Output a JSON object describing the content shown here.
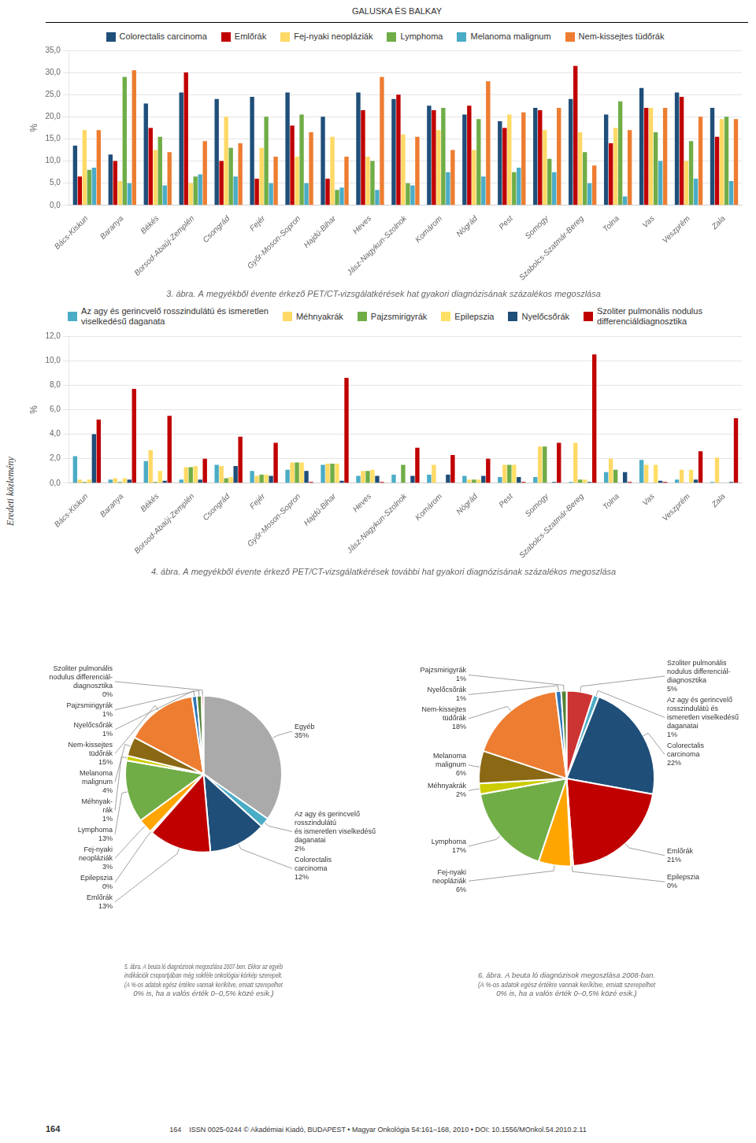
{
  "chart_data": [
    {
      "type": "bar",
      "title": "3. ábra. A megyékből évente érkező PET/CT-vizsgálatkérések hat gyakori diagnózisának százalékos megoszlása",
      "annotations": [
        "GALUSKA ÉS BALKAY",
        "Eredeti közlemény",
        "164",
        "164    ISSN 0025-0244 © Akadémiai Kiadó, BUDAPEST • Magyar Onkológia 54:161–168, 2010 • DOI: 10.1556/MOnkol.54.2010.2.11"
      ],
      "ylabel": "%",
      "categories": [
        "Bács-Kiskun",
        "Baranya",
        "Békés",
        "Borsod-Abaúj-Zemplén",
        "Csongrád",
        "Fejér",
        "Győr-Moson-Sopron",
        "Hajdú-Bihar",
        "Heves",
        "Jász-Nagykun-Szolnok",
        "Komárom",
        "Nógrád",
        "Pest",
        "Somogy",
        "Szabolcs-Szatmár-Bereg",
        "Tolna",
        "Vas",
        "Veszprém",
        "Zala"
      ],
      "series": [
        {
          "name": "Colorectalis carcinoma",
          "color": "#1F4E79",
          "values": [
            13.5,
            11.5,
            23.0,
            25.5,
            24.0,
            24.5,
            25.5,
            20.0,
            25.5,
            24.0,
            22.5,
            20.5,
            19.0,
            22.0,
            24.0,
            20.5,
            26.5,
            25.5,
            22.0
          ]
        },
        {
          "name": "Emlőrák",
          "color": "#C00000",
          "values": [
            6.5,
            10.0,
            17.5,
            30.0,
            10.0,
            6.0,
            18.0,
            6.0,
            21.5,
            25.0,
            21.5,
            22.5,
            17.5,
            21.5,
            31.5,
            14.0,
            22.0,
            24.5,
            15.5
          ]
        },
        {
          "name": "Fej-nyaki neopláziák",
          "color": "#FFD966",
          "values": [
            17.0,
            5.5,
            12.5,
            5.0,
            20.0,
            13.0,
            11.0,
            15.5,
            11.0,
            16.0,
            17.0,
            12.5,
            20.5,
            17.0,
            16.5,
            17.5,
            22.0,
            10.0,
            19.5
          ]
        },
        {
          "name": "Lymphoma",
          "color": "#70AD47",
          "values": [
            8.0,
            29.0,
            15.5,
            6.5,
            13.0,
            20.0,
            20.5,
            3.5,
            10.0,
            5.0,
            22.0,
            19.5,
            7.5,
            10.5,
            12.0,
            23.5,
            16.5,
            14.5,
            20.0
          ]
        },
        {
          "name": "Melanoma malignum",
          "color": "#4BACC6",
          "values": [
            8.5,
            5.0,
            4.5,
            7.0,
            6.5,
            5.0,
            5.0,
            4.0,
            3.5,
            4.5,
            7.5,
            6.5,
            8.5,
            7.5,
            5.0,
            2.0,
            10.0,
            6.0,
            5.5
          ]
        },
        {
          "name": "Nem-kissejtes tüdőrák",
          "color": "#ED7D31",
          "values": [
            17.0,
            30.5,
            12.0,
            14.5,
            14.0,
            11.0,
            16.5,
            11.0,
            29.0,
            15.5,
            12.5,
            28.0,
            21.0,
            22.0,
            9.0,
            17.0,
            22.0,
            20.0,
            19.5
          ]
        }
      ],
      "ylim": [
        0,
        35
      ],
      "yticks": [
        {
          "value": 0,
          "label": "0,0"
        },
        {
          "value": 5,
          "label": "5,0"
        },
        {
          "value": 10,
          "label": "10,0"
        },
        {
          "value": 15,
          "label": "15,0"
        },
        {
          "value": 20,
          "label": "20,0"
        },
        {
          "value": 25,
          "label": "25,0"
        },
        {
          "value": 30,
          "label": "30,0"
        },
        {
          "value": 35,
          "label": "35,0"
        }
      ],
      "grid": true,
      "legend": "top"
    },
    {
      "type": "bar",
      "title": "4. ábra. A megyékből évente érkező PET/CT-vizsgálatkérések további hat gyakori diagnózisának százalékos megoszlása",
      "ylabel": "%",
      "categories": [
        "Bács-Kiskun",
        "Baranya",
        "Békés",
        "Borsod-Abaúj-Zemplén",
        "Csongrád",
        "Fejér",
        "Győr-Moson-Sopron",
        "Hajdú-Bihar",
        "Heves",
        "Jász-Nagykun-Szolnok",
        "Komárom",
        "Nógrád",
        "Pest",
        "Somogy",
        "Szabolcs-Szatmár-Bereg",
        "Tolna",
        "Vas",
        "Veszprém",
        "Zala"
      ],
      "series": [
        {
          "name": "Az agy és gerincvelő rosszindulátú és ismeretlen\nviselkedésű daganata",
          "color": "#4BACC6",
          "values": [
            2.2,
            0.3,
            1.8,
            0.3,
            1.5,
            1.0,
            1.1,
            1.5,
            0.6,
            0.7,
            0.7,
            0.6,
            0.5,
            0.5,
            0.1,
            0.9,
            1.9,
            0.3,
            0.1
          ]
        },
        {
          "name": "Méhnyakrák",
          "color": "#FFD966",
          "values": [
            0.3,
            0.4,
            2.7,
            1.3,
            1.4,
            0.6,
            1.7,
            1.6,
            1.0,
            0.0,
            1.5,
            0.3,
            1.5,
            3.0,
            3.3,
            2.0,
            1.5,
            1.1,
            2.1
          ]
        },
        {
          "name": "Pajzsmirigyrák",
          "color": "#70AD47",
          "values": [
            0.1,
            0.1,
            0.1,
            1.3,
            0.4,
            0.7,
            1.7,
            1.6,
            1.0,
            1.5,
            0.0,
            0.3,
            1.5,
            3.0,
            0.3,
            1.1,
            0.0,
            0.0,
            0.0
          ]
        },
        {
          "name": "Epilepszia",
          "color": "#FFE066",
          "values": [
            0.3,
            0.4,
            1.0,
            1.4,
            0.5,
            0.7,
            1.7,
            1.6,
            1.1,
            0.0,
            0.0,
            0.3,
            1.5,
            0.0,
            0.3,
            0.0,
            1.5,
            1.1,
            0.0
          ]
        },
        {
          "name": "Nyelőcsőrák",
          "color": "#1F4E79",
          "values": [
            4.0,
            0.3,
            0.2,
            0.3,
            1.4,
            0.6,
            1.0,
            0.2,
            0.6,
            0.6,
            0.7,
            0.6,
            0.5,
            0.1,
            0.1,
            0.9,
            0.2,
            0.3,
            0.1
          ]
        },
        {
          "name": "Szoliter pulmonális nodulus\ndifferenciáldiagnosztika",
          "color": "#C00000",
          "values": [
            5.2,
            7.7,
            5.5,
            2.0,
            3.8,
            3.3,
            0.1,
            8.6,
            0.1,
            2.9,
            2.3,
            2.0,
            0.1,
            3.3,
            10.5,
            0.1,
            0.1,
            2.6,
            5.3
          ]
        }
      ],
      "ylim": [
        0,
        12
      ],
      "yticks": [
        {
          "value": 0,
          "label": "0,0"
        },
        {
          "value": 2,
          "label": "2,0"
        },
        {
          "value": 4,
          "label": "4,0"
        },
        {
          "value": 6,
          "label": "6,0"
        },
        {
          "value": 8,
          "label": "8,0"
        },
        {
          "value": 10,
          "label": "10,0"
        },
        {
          "value": 12,
          "label": "12,0"
        }
      ],
      "grid": true,
      "legend": "top"
    },
    {
      "type": "pie",
      "title": "5. ábra. A beuta ló diagnózisok megoszlása 2007-ben. Ekkor az egyéb\nindikációk csoportjában még sokféle onkológiai kórkép szerepelt.\n(A %-os adatok egész értékre vannak keríkítve, emiatt szerepelhet\n0% is, ha a valós érték 0–0,5% közé esik.)",
      "categories": [
        "Egyéb\n35%",
        "Az agy és gerincvelő\nrosszindulátú\nés ismeretlen viselkedésű\ndaganatai\n2%",
        "Colorectalis\ncarcinoma\n12%",
        "Emlőrák\n13%",
        "Epilepszia\n0%",
        "Fej-nyaki\nneopláziák\n3%",
        "Lymphoma\n13%",
        "Méhnyak-\nrák\n1%",
        "Melanoma\nmalignum\n4%",
        "Nem-kissejtes\ntüdőrák\n15%",
        "Nyelőcsőrák\n1%",
        "Pajzsmirigyrák\n1%",
        "Szoliter pulmonális\nnodulus differenciál-\ndiagnosztika\n0%"
      ],
      "values": [
        35,
        2,
        12,
        13,
        0.4,
        3,
        13,
        1,
        4,
        15,
        1,
        1,
        0.4
      ],
      "colors": [
        "#AAAAAA",
        "#4BACC6",
        "#1F4E79",
        "#C00000",
        "#FFD966",
        "#FFA500",
        "#70AD47",
        "#CCCC00",
        "#8B6914",
        "#ED7D31",
        "#2F75B6",
        "#548235",
        "#CC3333"
      ]
    },
    {
      "type": "pie",
      "title": "6. ábra. A beuta ló diagnózisok megoszlása 2008-ban.\n(A %-os adatok egész értékre vannak keríkítve, emiatt szerepelhet\n0% is, ha a valós érték 0–0,5% közé esik.)",
      "categories": [
        "Szoliter pulmonális\nnodulus differenciál-\ndiagnosztika\n5%",
        "Az agy és gerincvelő\nrosszindulátú és\nismeretlen viselkedésű\ndaganatai\n1%",
        "Colorectalis\ncarcinoma\n22%",
        "Emlőrák\n21%",
        "Epilepszia\n0%",
        "Fej-nyaki\nneopláziák\n6%",
        "Lymphoma\n17%",
        "Méhnyakrák\n2%",
        "Melanoma\nmalignum\n6%",
        "Nem-kissejtes\ntüdőrák\n18%",
        "Nyelőcsőrák\n1%",
        "Pajzsmirigyrák\n1%"
      ],
      "values": [
        5,
        1,
        22,
        21,
        0.4,
        6,
        17,
        2,
        6,
        18,
        1,
        1
      ],
      "colors": [
        "#CC3333",
        "#4BACC6",
        "#1F4E79",
        "#C00000",
        "#FFD966",
        "#FFA500",
        "#70AD47",
        "#CCCC00",
        "#8B6914",
        "#ED7D31",
        "#2F75B6",
        "#548235"
      ]
    }
  ]
}
